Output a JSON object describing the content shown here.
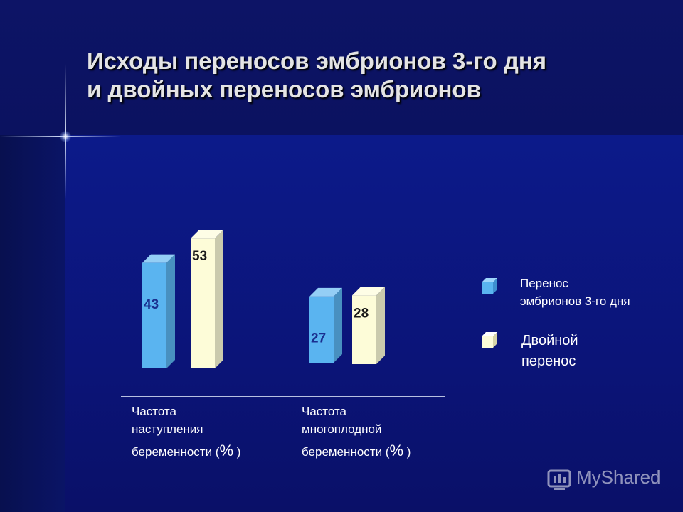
{
  "slide": {
    "title_line1": "Исходы переносов эмбрионов 3-го дня",
    "title_line2": "и двойных переносов эмбрионов"
  },
  "chart_data": {
    "type": "bar",
    "categories": [
      "Частота наступления беременности (% )",
      "Частота многоплодной беременности (% )"
    ],
    "category_lines": [
      [
        "Частота",
        "наступления",
        "беременности (",
        "%",
        " )"
      ],
      [
        "Частота",
        "многоплодной",
        "беременности (",
        "%",
        " )"
      ]
    ],
    "series": [
      {
        "name": "Перенос эмбрионов 3-го дня",
        "values": [
          43,
          27
        ],
        "color": "#5ab4f0"
      },
      {
        "name": "Двойной перенос",
        "values": [
          53,
          28
        ],
        "color": "#fdfcd8"
      }
    ],
    "data_labels": [
      "43",
      "53",
      "27",
      "28"
    ],
    "legend_placement": "right",
    "grid": false
  },
  "legend": {
    "item1_line1": "Перенос",
    "item1_line2": "эмбрионов 3-го дня",
    "item2_line1": "Двойной",
    "item2_line2": "перенос"
  },
  "colors": {
    "background": "#0c1a8a",
    "series1": "#5ab4f0",
    "series2": "#fdfcd8",
    "label_series1": "#1a2f8f",
    "label_series2": "#1a1a1a"
  },
  "watermark": "MyShared"
}
